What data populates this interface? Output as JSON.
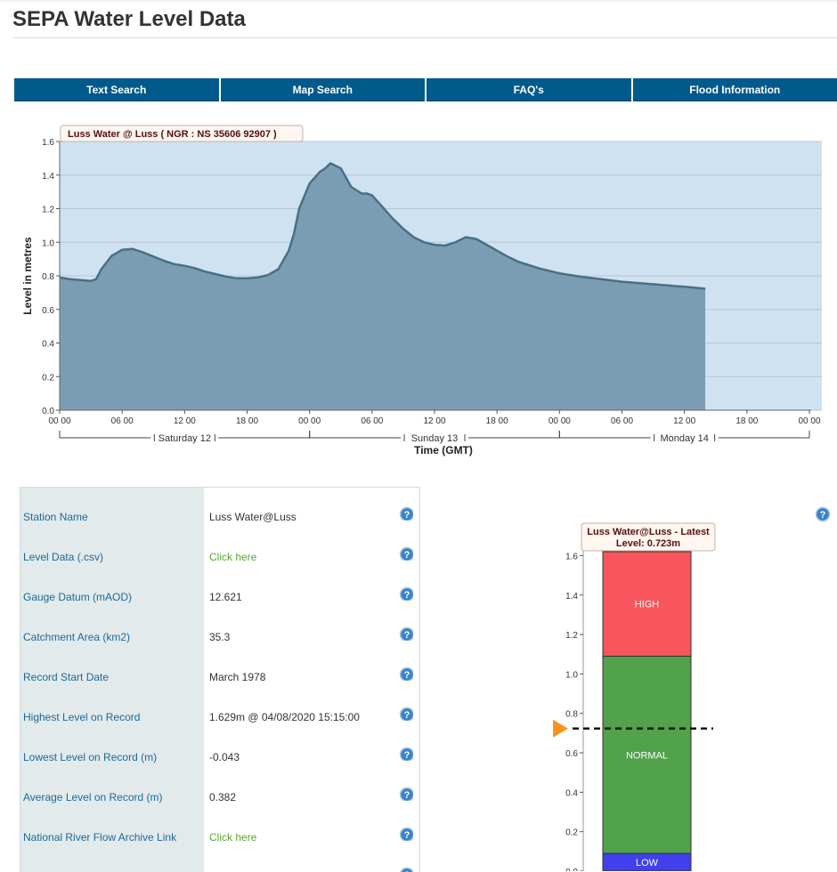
{
  "page_title": "SEPA Water Level Data",
  "nav": [
    "Text Search",
    "Map Search",
    "FAQ's",
    "Flood Information"
  ],
  "chart_data": [
    {
      "type": "area",
      "title": "Luss Water @ Luss      ( NGR : NS 35606 92907 )",
      "xlabel": "Time (GMT)",
      "ylabel": "Level in metres",
      "ylim": [
        0,
        1.6
      ],
      "yticks": [
        "0.0",
        "0.2",
        "0.4",
        "0.6",
        "0.8",
        "1.0",
        "1.2",
        "1.4",
        "1.6"
      ],
      "xticks": [
        "00 00",
        "06 00",
        "12 00",
        "18 00",
        "00 00",
        "06 00",
        "12 00",
        "18 00",
        "00 00",
        "06 00",
        "12 00",
        "18 00",
        "00 00"
      ],
      "day_labels": [
        "Saturday 12",
        "Sunday 13",
        "Monday 14"
      ],
      "x_hours": [
        0,
        1,
        2,
        3,
        3.5,
        4,
        5,
        6,
        7,
        8,
        9,
        10,
        11,
        12,
        13,
        14,
        15,
        16,
        17,
        18,
        19,
        20,
        21,
        22,
        22.5,
        23,
        24,
        25,
        25.5,
        26,
        27,
        28,
        29,
        29.5,
        30,
        31,
        32,
        33,
        34,
        35,
        36,
        37,
        38,
        39,
        40,
        41,
        42,
        43,
        44,
        46,
        48,
        50,
        52,
        54,
        56,
        58,
        60,
        62
      ],
      "values": [
        0.79,
        0.78,
        0.775,
        0.77,
        0.78,
        0.84,
        0.92,
        0.955,
        0.96,
        0.94,
        0.915,
        0.89,
        0.87,
        0.86,
        0.845,
        0.825,
        0.81,
        0.795,
        0.785,
        0.785,
        0.79,
        0.805,
        0.84,
        0.95,
        1.05,
        1.2,
        1.35,
        1.42,
        1.44,
        1.47,
        1.44,
        1.33,
        1.29,
        1.29,
        1.28,
        1.21,
        1.14,
        1.08,
        1.03,
        1.0,
        0.985,
        0.98,
        1.0,
        1.03,
        1.02,
        0.985,
        0.95,
        0.915,
        0.885,
        0.845,
        0.815,
        0.795,
        0.78,
        0.765,
        0.755,
        0.745,
        0.735,
        0.723
      ]
    },
    {
      "type": "bar",
      "title": "Luss Water@Luss - Latest",
      "subtitle": "Level: 0.723m",
      "ylim": [
        0,
        1.62
      ],
      "yticks": [
        "0.0",
        "0.2",
        "0.4",
        "0.6",
        "0.8",
        "1.0",
        "1.2",
        "1.4",
        "1.6"
      ],
      "bands": [
        {
          "name": "LOW",
          "from": 0.0,
          "to": 0.09,
          "color": "#4040ee"
        },
        {
          "name": "NORMAL",
          "from": 0.09,
          "to": 1.09,
          "color": "#52a14b"
        },
        {
          "name": "HIGH",
          "from": 1.09,
          "to": 1.62,
          "color": "#f8565c"
        }
      ],
      "latest_level": 0.723
    }
  ],
  "rows": [
    {
      "label": "Station Name",
      "value": "Luss Water@Luss",
      "link": false
    },
    {
      "label": "Level Data (.csv)",
      "value": "Click here",
      "link": true
    },
    {
      "label": "Gauge Datum (mAOD)",
      "value": "12.621",
      "link": false
    },
    {
      "label": "Catchment Area (km2)",
      "value": "35.3",
      "link": false
    },
    {
      "label": "Record Start Date",
      "value": "March 1978",
      "link": false
    },
    {
      "label": "Highest Level on Record",
      "value": "1.629m @ 04/08/2020 15:15:00",
      "link": false
    },
    {
      "label": "Lowest Level on Record (m)",
      "value": "-0.043",
      "link": false
    },
    {
      "label": "Average Level on Record (m)",
      "value": "0.382",
      "link": false
    },
    {
      "label": "National River Flow Archive Link",
      "value": "Click here",
      "link": true
    }
  ],
  "colors": {
    "nav": "#005a8c",
    "plot_bg": "#cfe2f1",
    "area_fill": "#7b9db3",
    "area_line": "#4a6f85",
    "label": "#1b6a9c",
    "link": "#5aa531",
    "marker": "#f7941d"
  }
}
